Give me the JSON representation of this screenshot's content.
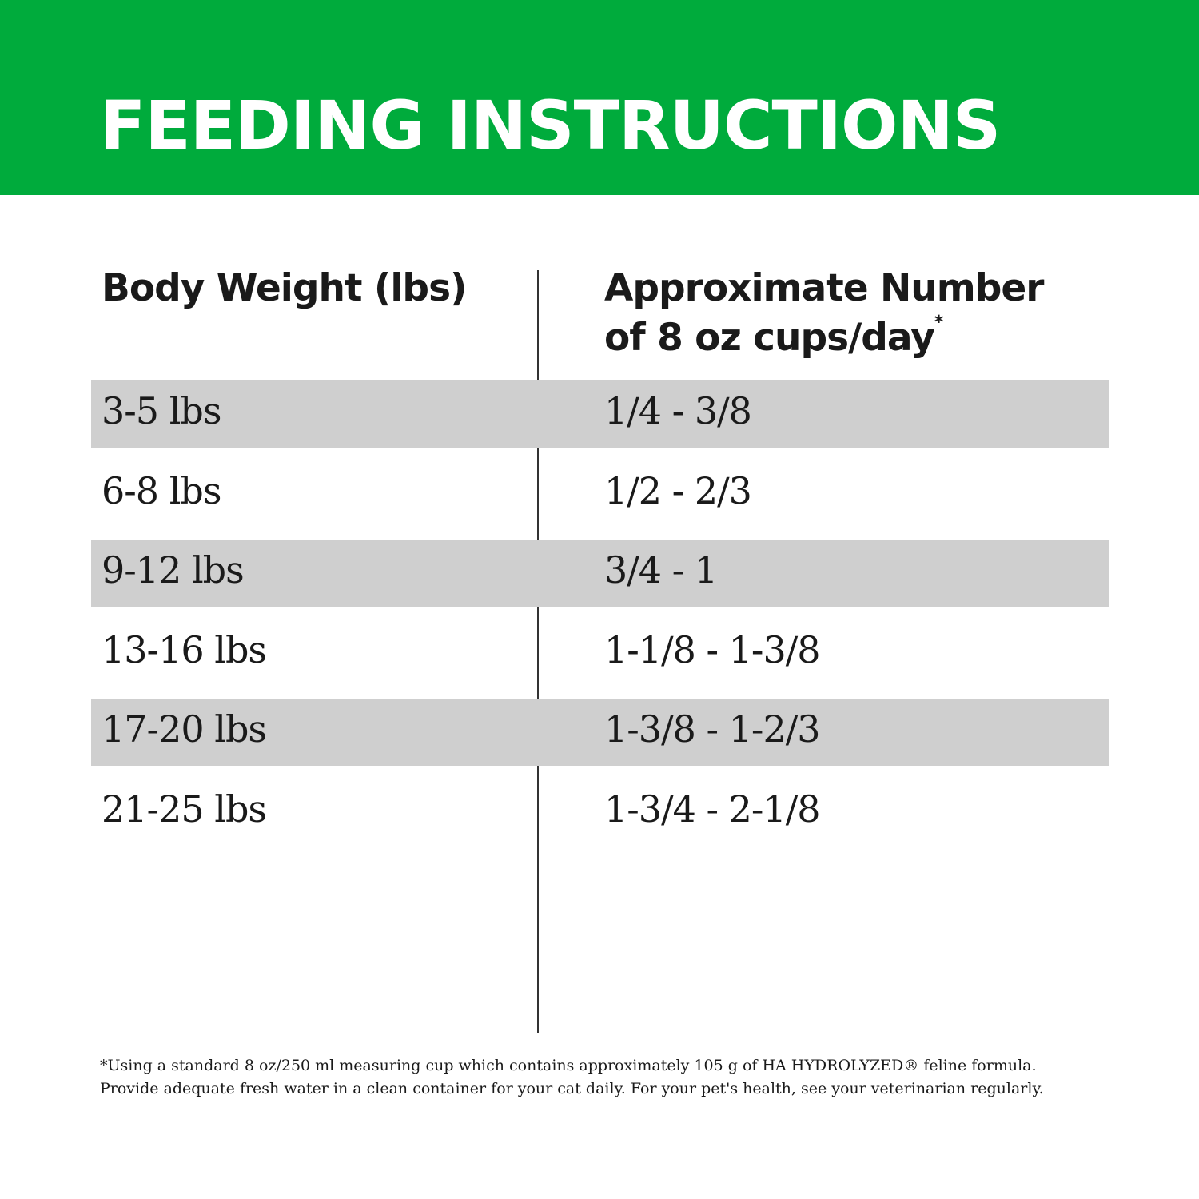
{
  "header": {
    "title": "FEEDING INSTRUCTIONS"
  },
  "table": {
    "columns": [
      {
        "lines": [
          "Body Weight (lbs)"
        ]
      },
      {
        "lines": [
          "Approximate Number",
          "of 8 oz cups/day"
        ],
        "marker": "*"
      }
    ],
    "rows": [
      [
        "3-5 lbs",
        "1/4 - 3/8"
      ],
      [
        "6-8 lbs",
        "1/2 - 2/3"
      ],
      [
        "9-12 lbs",
        "3/4 - 1"
      ],
      [
        "13-16 lbs",
        "1-1/8 - 1-3/8"
      ],
      [
        "17-20 lbs",
        "1-3/8 - 1-2/3"
      ],
      [
        "21-25 lbs",
        "1-3/4 - 2-1/8"
      ]
    ]
  },
  "footnote": [
    "*Using a standard 8 oz/250 ml measuring cup which contains approximately 105 g of HA HYDROLYZED® feline formula.",
    "Provide adequate fresh water in a clean container for your cat daily. For your pet's health, see your veterinarian regularly."
  ]
}
